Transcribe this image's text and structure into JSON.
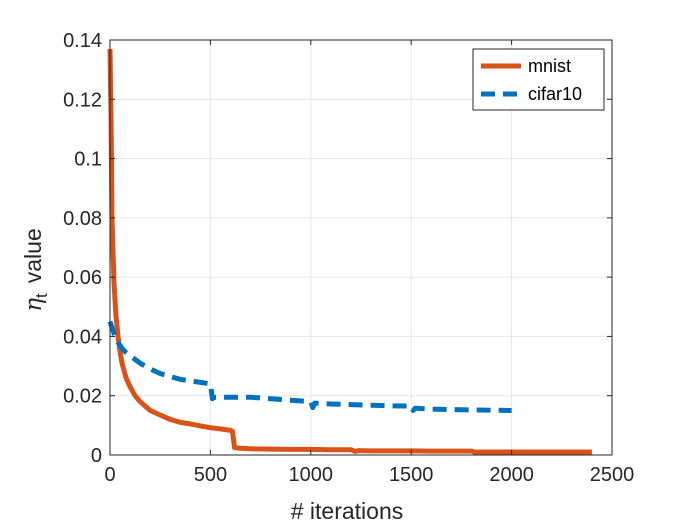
{
  "chart_data": {
    "type": "line",
    "title": "",
    "xlabel": "# iterations",
    "ylabel": "value",
    "ylabel_symbol": "η",
    "ylabel_subscript": "t",
    "xlim": [
      0,
      2500
    ],
    "ylim": [
      0,
      0.14
    ],
    "xticks": [
      0,
      500,
      1000,
      1500,
      2000,
      2500
    ],
    "xtick_labels": [
      "0",
      "500",
      "1000",
      "1500",
      "2000",
      "2500"
    ],
    "yticks": [
      0,
      0.02,
      0.04,
      0.06,
      0.08,
      0.1,
      0.12,
      0.14
    ],
    "ytick_labels": [
      "0",
      "0.02",
      "0.04",
      "0.06",
      "0.08",
      "0.1",
      "0.12",
      "0.14"
    ],
    "grid": true,
    "legend_position": "top-right",
    "series": [
      {
        "name": "mnist",
        "color": "#D95319",
        "style": "solid",
        "x": [
          0,
          5,
          10,
          20,
          30,
          40,
          50,
          60,
          80,
          100,
          125,
          150,
          200,
          250,
          300,
          350,
          400,
          450,
          500,
          550,
          600,
          610,
          620,
          650,
          700,
          800,
          900,
          1000,
          1100,
          1200,
          1220,
          1240,
          1300,
          1400,
          1500,
          1600,
          1700,
          1800,
          1820,
          1840,
          1900,
          2000,
          2100,
          2200,
          2300,
          2400
        ],
        "y": [
          0.137,
          0.115,
          0.08,
          0.058,
          0.047,
          0.04,
          0.035,
          0.031,
          0.026,
          0.023,
          0.02,
          0.018,
          0.015,
          0.0135,
          0.012,
          0.011,
          0.0105,
          0.0098,
          0.0092,
          0.0088,
          0.0083,
          0.008,
          0.0025,
          0.0023,
          0.0021,
          0.002,
          0.0019,
          0.0019,
          0.0018,
          0.0018,
          0.0012,
          0.0015,
          0.0014,
          0.0014,
          0.0014,
          0.0013,
          0.0013,
          0.0013,
          0.0009,
          0.001,
          0.001,
          0.001,
          0.001,
          0.001,
          0.001,
          0.001
        ]
      },
      {
        "name": "cifar10",
        "color": "#0072BD",
        "style": "dashed",
        "x": [
          0,
          10,
          20,
          40,
          60,
          80,
          100,
          150,
          200,
          250,
          300,
          350,
          400,
          450,
          500,
          510,
          520,
          600,
          700,
          800,
          900,
          1000,
          1010,
          1020,
          1100,
          1200,
          1300,
          1400,
          1500,
          1510,
          1520,
          1600,
          1700,
          1800,
          1900,
          2000
        ],
        "y": [
          0.045,
          0.043,
          0.041,
          0.038,
          0.036,
          0.0345,
          0.0335,
          0.031,
          0.029,
          0.0275,
          0.0265,
          0.0255,
          0.025,
          0.0245,
          0.024,
          0.019,
          0.0195,
          0.0195,
          0.0195,
          0.019,
          0.0185,
          0.018,
          0.016,
          0.0175,
          0.0172,
          0.017,
          0.0168,
          0.0166,
          0.0165,
          0.015,
          0.0158,
          0.0155,
          0.0153,
          0.0152,
          0.0151,
          0.015
        ]
      }
    ]
  }
}
